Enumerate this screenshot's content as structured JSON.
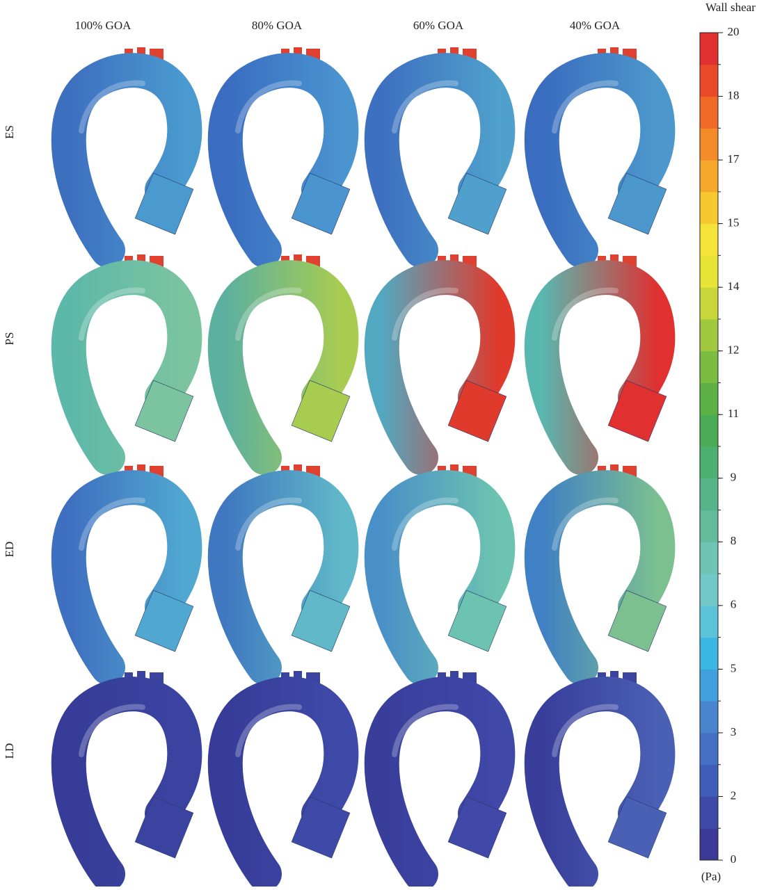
{
  "columns": [
    "100% GOA",
    "80% GOA",
    "60% GOA",
    "40% GOA"
  ],
  "rows": [
    "ES",
    "PS",
    "ED",
    "LD"
  ],
  "colorbar": {
    "title": "Wall shear",
    "unit": "(Pa)",
    "lim": [
      0,
      20
    ],
    "ticks": [
      0,
      {
        "value": 1.538,
        "label": "2"
      },
      {
        "value": 3.077,
        "label": "3"
      },
      {
        "value": 4.615,
        "label": "5"
      },
      {
        "value": 6.154,
        "label": "6"
      },
      {
        "value": 7.692,
        "label": "8"
      },
      {
        "value": 9.231,
        "label": "9"
      },
      {
        "value": 10.769,
        "label": "11"
      },
      {
        "value": 12.308,
        "label": "12"
      },
      {
        "value": 13.846,
        "label": "14"
      },
      {
        "value": 15.385,
        "label": "15"
      },
      {
        "value": 16.923,
        "label": "17"
      },
      {
        "value": 18.462,
        "label": "18"
      },
      20
    ],
    "colors": [
      "#3a3a96",
      "#3d4aa8",
      "#3e5db8",
      "#4470c4",
      "#4a84cc",
      "#3fa0dd",
      "#3cb6e4",
      "#5bc4d8",
      "#72c8c8",
      "#6fc4b4",
      "#62bc9c",
      "#55b588",
      "#4cb070",
      "#4aac54",
      "#5cb044",
      "#7cbc40",
      "#a0c83c",
      "#c8d63a",
      "#e8e436",
      "#f6e438",
      "#f8c830",
      "#f6a82a",
      "#f48a28",
      "#f06a26",
      "#e84a28",
      "#e03030"
    ]
  }
}
